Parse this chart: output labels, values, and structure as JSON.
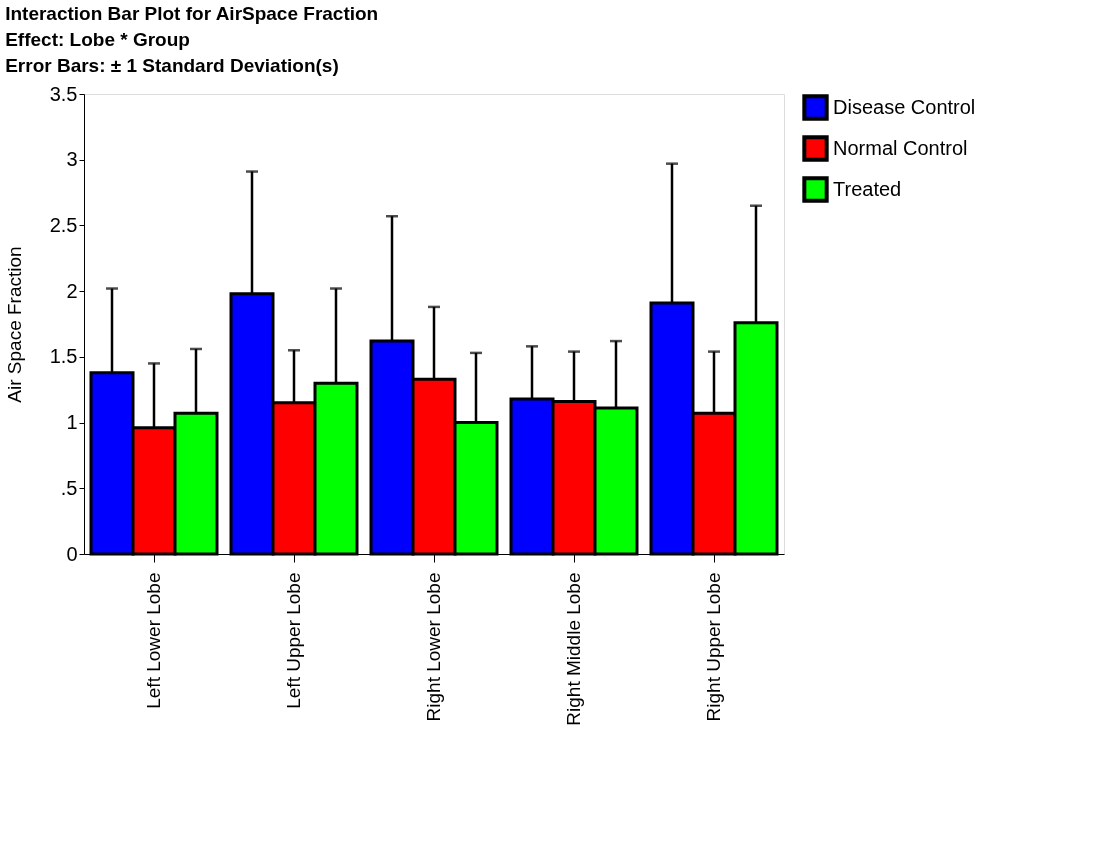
{
  "chart_data": {
    "type": "bar",
    "title": [
      "Interaction Bar Plot for AirSpace Fraction",
      "Effect: Lobe * Group",
      "Error Bars: ± 1 Standard Deviation(s)"
    ],
    "ylabel": "Air Space Fraction",
    "categories": [
      "Left Lower Lobe",
      "Left Upper Lobe",
      "Right Lower Lobe",
      "Right Middle Lobe",
      "Right Upper Lobe"
    ],
    "series": [
      {
        "name": "Disease Control",
        "color": "#0000ff",
        "values": [
          1.38,
          1.98,
          1.62,
          1.18,
          1.91
        ],
        "errors": [
          0.64,
          0.93,
          0.95,
          0.4,
          1.06
        ]
      },
      {
        "name": "Normal Control",
        "color": "#ff0000",
        "values": [
          0.96,
          1.15,
          1.33,
          1.16,
          1.07
        ],
        "errors": [
          0.49,
          0.4,
          0.55,
          0.38,
          0.47
        ]
      },
      {
        "name": "Treated",
        "color": "#00ff00",
        "values": [
          1.07,
          1.3,
          1.0,
          1.11,
          1.76
        ],
        "errors": [
          0.49,
          0.72,
          0.53,
          0.51,
          0.89
        ]
      }
    ],
    "ylim": [
      0,
      3.5
    ],
    "yticks": [
      0,
      {
        "value": 0.5,
        "label": ".5"
      },
      1,
      1.5,
      2,
      2.5,
      3,
      3.5
    ],
    "grid": false,
    "legend": "right"
  }
}
